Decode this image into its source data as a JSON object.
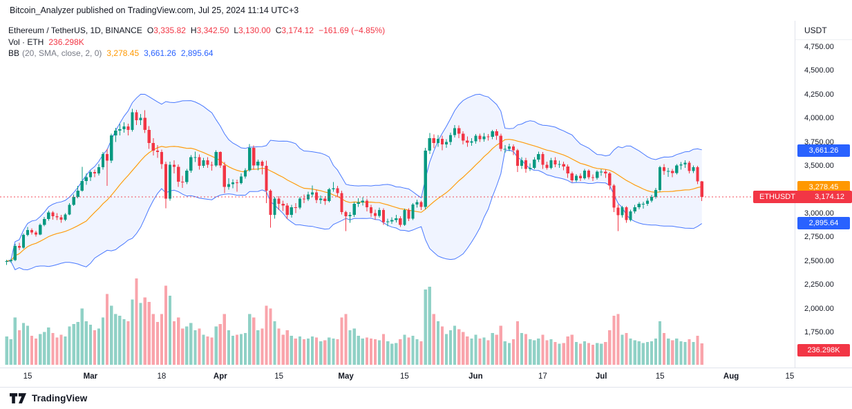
{
  "attribution": "Bitcoin_Analyzer published on TradingView.com, Jul 25, 2024 11:14 UTC+3",
  "legend": {
    "title": "Ethereum / TetherUS, 1D, BINANCE",
    "o_label": "O",
    "o_value": "3,335.82",
    "h_label": "H",
    "h_value": "3,342.50",
    "l_label": "L",
    "l_value": "3,130.00",
    "c_label": "C",
    "c_value": "3,174.12",
    "change": "−161.69 (−4.85%)",
    "vol_label": "Vol · ETH",
    "vol_value": "236.298K",
    "bb_name": "BB",
    "bb_params": "(20, SMA, close, 2, 0)",
    "bb_basis": "3,278.45",
    "bb_upper": "3,661.26",
    "bb_lower": "2,895.64"
  },
  "price_axis": {
    "currency": "USDT",
    "labels": [
      "4,750.00",
      "4,500.00",
      "4,250.00",
      "4,000.00",
      "3,750.00",
      "3,500.00",
      "3,000.00",
      "2,750.00",
      "2,500.00",
      "2,250.00",
      "2,000.00",
      "1,750.00"
    ],
    "badges": {
      "upper": "3,661.26",
      "basis": "3,278.45",
      "lower": "2,895.64",
      "last_symbol": "ETHUSDT",
      "last_price": "3,174.12",
      "volume": "236.298K"
    }
  },
  "time_axis": {
    "ticks": [
      {
        "label": "15",
        "i": 5
      },
      {
        "label": "Mar",
        "i": 20
      },
      {
        "label": "18",
        "i": 37
      },
      {
        "label": "Apr",
        "i": 51
      },
      {
        "label": "15",
        "i": 65
      },
      {
        "label": "May",
        "i": 81
      },
      {
        "label": "15",
        "i": 95
      },
      {
        "label": "Jun",
        "i": 112
      },
      {
        "label": "17",
        "i": 128
      },
      {
        "label": "Jul",
        "i": 142
      },
      {
        "label": "15",
        "i": 156
      },
      {
        "label": "Aug",
        "i": 173
      },
      {
        "label": "15",
        "i": 187
      }
    ]
  },
  "footer": {
    "brand": "TradingView"
  },
  "colors": {
    "up": "#089981",
    "down": "#f23645",
    "vol_up": "rgba(8,153,129,0.45)",
    "vol_down": "rgba(242,54,69,0.45)",
    "band": "#2962ff",
    "band_fill": "rgba(41,98,255,0.07)",
    "basis": "#ff9800",
    "badge_blue": "#2962ff",
    "badge_orange": "#ff9800",
    "badge_red": "#f23645",
    "text": "#131722",
    "muted": "#787b86"
  },
  "chart_data": {
    "type": "candlestick",
    "symbol": "ETHUSDT",
    "pair_name": "Ethereum / TetherUS",
    "exchange": "BINANCE",
    "interval": "1D",
    "start_date": "2024-02-10",
    "end_date": "2024-07-25",
    "price_axis_ticks": [
      4750,
      4500,
      4250,
      4000,
      3750,
      3500,
      3000,
      2750,
      2500,
      2250,
      2000,
      1750
    ],
    "last": {
      "open": 3335.82,
      "high": 3342.5,
      "low": 3130.0,
      "close": 3174.12,
      "change": -161.69,
      "change_pct": -4.85
    },
    "volume_last_display": "236.298K",
    "bb": {
      "length": 20,
      "source": "close",
      "mult": 2,
      "offset": 0,
      "basis": 3278.45,
      "upper": 3661.26,
      "lower": 2895.64
    },
    "grid": false,
    "legend_position": "top-left",
    "candles_format": [
      "open",
      "high",
      "low",
      "close",
      "volume_thousands"
    ],
    "candles": [
      [
        2495,
        2515,
        2460,
        2500,
        310
      ],
      [
        2500,
        2525,
        2480,
        2508,
        280
      ],
      [
        2508,
        2680,
        2500,
        2660,
        520
      ],
      [
        2660,
        2690,
        2615,
        2640,
        380
      ],
      [
        2640,
        2790,
        2630,
        2775,
        460
      ],
      [
        2775,
        2860,
        2760,
        2825,
        430
      ],
      [
        2825,
        2845,
        2780,
        2800,
        320
      ],
      [
        2800,
        2820,
        2755,
        2780,
        290
      ],
      [
        2780,
        2895,
        2770,
        2880,
        340
      ],
      [
        2880,
        2965,
        2865,
        2940,
        360
      ],
      [
        2940,
        3030,
        2925,
        3010,
        410
      ],
      [
        3010,
        3025,
        2935,
        2970,
        350
      ],
      [
        2970,
        3005,
        2930,
        2960,
        300
      ],
      [
        2960,
        2985,
        2900,
        2935,
        330
      ],
      [
        2935,
        3005,
        2920,
        2990,
        310
      ],
      [
        2990,
        3110,
        2980,
        3090,
        420
      ],
      [
        3090,
        3200,
        3080,
        3175,
        450
      ],
      [
        3175,
        3290,
        3160,
        3240,
        470
      ],
      [
        3240,
        3490,
        3230,
        3340,
        620
      ],
      [
        3340,
        3420,
        3300,
        3380,
        480
      ],
      [
        3380,
        3450,
        3340,
        3435,
        440
      ],
      [
        3435,
        3460,
        3380,
        3420,
        380
      ],
      [
        3420,
        3520,
        3400,
        3485,
        400
      ],
      [
        3485,
        3645,
        3460,
        3625,
        520
      ],
      [
        3625,
        3680,
        3290,
        3555,
        780
      ],
      [
        3555,
        3840,
        3530,
        3820,
        650
      ],
      [
        3820,
        3900,
        3750,
        3870,
        560
      ],
      [
        3870,
        3940,
        3820,
        3885,
        540
      ],
      [
        3885,
        3960,
        3850,
        3915,
        500
      ],
      [
        3915,
        3945,
        3820,
        3880,
        480
      ],
      [
        3880,
        4100,
        3860,
        4065,
        720
      ],
      [
        4065,
        4090,
        3930,
        3980,
        950
      ],
      [
        3980,
        4045,
        3930,
        4005,
        680
      ],
      [
        4005,
        4085,
        3845,
        3880,
        740
      ],
      [
        3880,
        3920,
        3680,
        3740,
        690
      ],
      [
        3740,
        3790,
        3610,
        3660,
        560
      ],
      [
        3660,
        3720,
        3585,
        3645,
        470
      ],
      [
        3645,
        3670,
        3470,
        3520,
        560
      ],
      [
        3520,
        3545,
        3055,
        3155,
        870
      ],
      [
        3155,
        3545,
        3135,
        3510,
        760
      ],
      [
        3510,
        3560,
        3420,
        3490,
        480
      ],
      [
        3490,
        3515,
        3280,
        3335,
        520
      ],
      [
        3335,
        3395,
        3270,
        3330,
        400
      ],
      [
        3330,
        3470,
        3310,
        3450,
        420
      ],
      [
        3450,
        3615,
        3430,
        3590,
        460
      ],
      [
        3590,
        3650,
        3540,
        3590,
        380
      ],
      [
        3590,
        3620,
        3460,
        3500,
        400
      ],
      [
        3500,
        3585,
        3480,
        3560,
        330
      ],
      [
        3560,
        3590,
        3480,
        3510,
        310
      ],
      [
        3510,
        3545,
        3450,
        3505,
        300
      ],
      [
        3505,
        3665,
        3490,
        3645,
        420
      ],
      [
        3645,
        3655,
        3480,
        3505,
        450
      ],
      [
        3505,
        3540,
        3215,
        3280,
        560
      ],
      [
        3280,
        3370,
        3250,
        3310,
        380
      ],
      [
        3310,
        3360,
        3265,
        3325,
        320
      ],
      [
        3325,
        3355,
        3230,
        3320,
        330
      ],
      [
        3320,
        3420,
        3305,
        3390,
        340
      ],
      [
        3390,
        3475,
        3365,
        3455,
        350
      ],
      [
        3455,
        3730,
        3440,
        3690,
        560
      ],
      [
        3690,
        3715,
        3460,
        3505,
        520
      ],
      [
        3505,
        3565,
        3455,
        3545,
        380
      ],
      [
        3545,
        3560,
        3410,
        3500,
        400
      ],
      [
        3500,
        3555,
        3110,
        3240,
        650
      ],
      [
        3240,
        3255,
        2850,
        2985,
        620
      ],
      [
        2985,
        3175,
        2945,
        3155,
        480
      ],
      [
        3155,
        3180,
        3035,
        3100,
        400
      ],
      [
        3100,
        3135,
        3025,
        3085,
        330
      ],
      [
        3085,
        3110,
        2940,
        2985,
        380
      ],
      [
        2985,
        3090,
        2955,
        3065,
        320
      ],
      [
        3065,
        3110,
        3005,
        3060,
        290
      ],
      [
        3060,
        3175,
        3045,
        3155,
        310
      ],
      [
        3155,
        3200,
        3110,
        3150,
        280
      ],
      [
        3150,
        3230,
        3130,
        3200,
        290
      ],
      [
        3200,
        3295,
        3170,
        3220,
        310
      ],
      [
        3220,
        3250,
        3110,
        3140,
        300
      ],
      [
        3140,
        3190,
        3100,
        3155,
        260
      ],
      [
        3155,
        3180,
        3090,
        3130,
        270
      ],
      [
        3130,
        3270,
        3115,
        3255,
        300
      ],
      [
        3255,
        3330,
        3230,
        3265,
        290
      ],
      [
        3265,
        3290,
        3170,
        3215,
        280
      ],
      [
        3215,
        3240,
        2990,
        3015,
        520
      ],
      [
        3015,
        3030,
        2815,
        2970,
        560
      ],
      [
        2970,
        3015,
        2900,
        2985,
        380
      ],
      [
        2985,
        3120,
        2965,
        3100,
        400
      ],
      [
        3100,
        3160,
        3070,
        3115,
        320
      ],
      [
        3115,
        3170,
        3085,
        3135,
        290
      ],
      [
        3135,
        3155,
        3020,
        3065,
        300
      ],
      [
        3065,
        3090,
        2965,
        3005,
        290
      ],
      [
        3005,
        3040,
        2935,
        2975,
        280
      ],
      [
        2975,
        3060,
        2955,
        3035,
        270
      ],
      [
        3035,
        3055,
        2880,
        2910,
        340
      ],
      [
        2910,
        2945,
        2865,
        2915,
        260
      ],
      [
        2915,
        2960,
        2890,
        2930,
        230
      ],
      [
        2930,
        2985,
        2905,
        2950,
        240
      ],
      [
        2950,
        2970,
        2860,
        2880,
        280
      ],
      [
        2880,
        3050,
        2870,
        3035,
        330
      ],
      [
        3035,
        3055,
        2920,
        2945,
        300
      ],
      [
        2945,
        3110,
        2930,
        3095,
        320
      ],
      [
        3095,
        3145,
        3060,
        3120,
        280
      ],
      [
        3120,
        3135,
        3035,
        3070,
        260
      ],
      [
        3070,
        3690,
        3045,
        3660,
        830
      ],
      [
        3660,
        3845,
        3625,
        3790,
        860
      ],
      [
        3790,
        3830,
        3685,
        3740,
        560
      ],
      [
        3740,
        3825,
        3700,
        3785,
        480
      ],
      [
        3785,
        3815,
        3665,
        3725,
        420
      ],
      [
        3725,
        3780,
        3690,
        3750,
        340
      ],
      [
        3750,
        3850,
        3720,
        3825,
        380
      ],
      [
        3825,
        3930,
        3800,
        3895,
        430
      ],
      [
        3895,
        3925,
        3790,
        3840,
        390
      ],
      [
        3840,
        3865,
        3725,
        3765,
        360
      ],
      [
        3765,
        3810,
        3700,
        3745,
        310
      ],
      [
        3745,
        3790,
        3710,
        3760,
        290
      ],
      [
        3760,
        3835,
        3735,
        3815,
        330
      ],
      [
        3815,
        3840,
        3750,
        3780,
        290
      ],
      [
        3780,
        3845,
        3755,
        3810,
        300
      ],
      [
        3810,
        3835,
        3765,
        3805,
        270
      ],
      [
        3805,
        3880,
        3780,
        3865,
        350
      ],
      [
        3865,
        3885,
        3775,
        3815,
        330
      ],
      [
        3815,
        3840,
        3655,
        3680,
        430
      ],
      [
        3680,
        3720,
        3640,
        3680,
        260
      ],
      [
        3680,
        3735,
        3655,
        3705,
        240
      ],
      [
        3705,
        3725,
        3615,
        3665,
        280
      ],
      [
        3665,
        3680,
        3435,
        3500,
        480
      ],
      [
        3500,
        3590,
        3470,
        3560,
        350
      ],
      [
        3560,
        3585,
        3430,
        3470,
        340
      ],
      [
        3470,
        3525,
        3445,
        3480,
        280
      ],
      [
        3480,
        3590,
        3465,
        3565,
        270
      ],
      [
        3565,
        3650,
        3540,
        3625,
        290
      ],
      [
        3625,
        3645,
        3470,
        3510,
        330
      ],
      [
        3510,
        3545,
        3460,
        3480,
        270
      ],
      [
        3480,
        3585,
        3465,
        3560,
        280
      ],
      [
        3560,
        3590,
        3485,
        3515,
        250
      ],
      [
        3515,
        3555,
        3480,
        3520,
        230
      ],
      [
        3520,
        3545,
        3455,
        3495,
        240
      ],
      [
        3495,
        3515,
        3375,
        3420,
        310
      ],
      [
        3420,
        3440,
        3325,
        3350,
        330
      ],
      [
        3350,
        3415,
        3330,
        3395,
        250
      ],
      [
        3395,
        3420,
        3340,
        3370,
        230
      ],
      [
        3370,
        3470,
        3355,
        3450,
        260
      ],
      [
        3450,
        3465,
        3360,
        3380,
        240
      ],
      [
        3380,
        3410,
        3340,
        3375,
        220
      ],
      [
        3375,
        3455,
        3355,
        3440,
        240
      ],
      [
        3440,
        3465,
        3395,
        3440,
        230
      ],
      [
        3440,
        3460,
        3375,
        3420,
        250
      ],
      [
        3420,
        3435,
        3250,
        3295,
        380
      ],
      [
        3295,
        3310,
        3015,
        3060,
        540
      ],
      [
        3060,
        3095,
        2815,
        2980,
        560
      ],
      [
        2980,
        3080,
        2955,
        3065,
        330
      ],
      [
        3065,
        3075,
        2900,
        2930,
        350
      ],
      [
        2930,
        3040,
        2915,
        3020,
        290
      ],
      [
        3020,
        3090,
        3000,
        3065,
        270
      ],
      [
        3065,
        3120,
        3045,
        3100,
        260
      ],
      [
        3100,
        3125,
        3050,
        3100,
        240
      ],
      [
        3100,
        3160,
        3080,
        3135,
        250
      ],
      [
        3135,
        3195,
        3115,
        3175,
        260
      ],
      [
        3175,
        3270,
        3155,
        3245,
        290
      ],
      [
        3245,
        3500,
        3230,
        3485,
        480
      ],
      [
        3485,
        3520,
        3405,
        3445,
        350
      ],
      [
        3445,
        3480,
        3385,
        3445,
        290
      ],
      [
        3445,
        3470,
        3380,
        3425,
        270
      ],
      [
        3425,
        3520,
        3410,
        3505,
        290
      ],
      [
        3505,
        3540,
        3460,
        3515,
        260
      ],
      [
        3515,
        3560,
        3480,
        3535,
        250
      ],
      [
        3535,
        3550,
        3420,
        3445,
        280
      ],
      [
        3445,
        3505,
        3425,
        3485,
        250
      ],
      [
        3485,
        3500,
        3310,
        3335.82,
        320
      ],
      [
        3335.82,
        3342.5,
        3130,
        3174.12,
        236.298
      ]
    ]
  }
}
